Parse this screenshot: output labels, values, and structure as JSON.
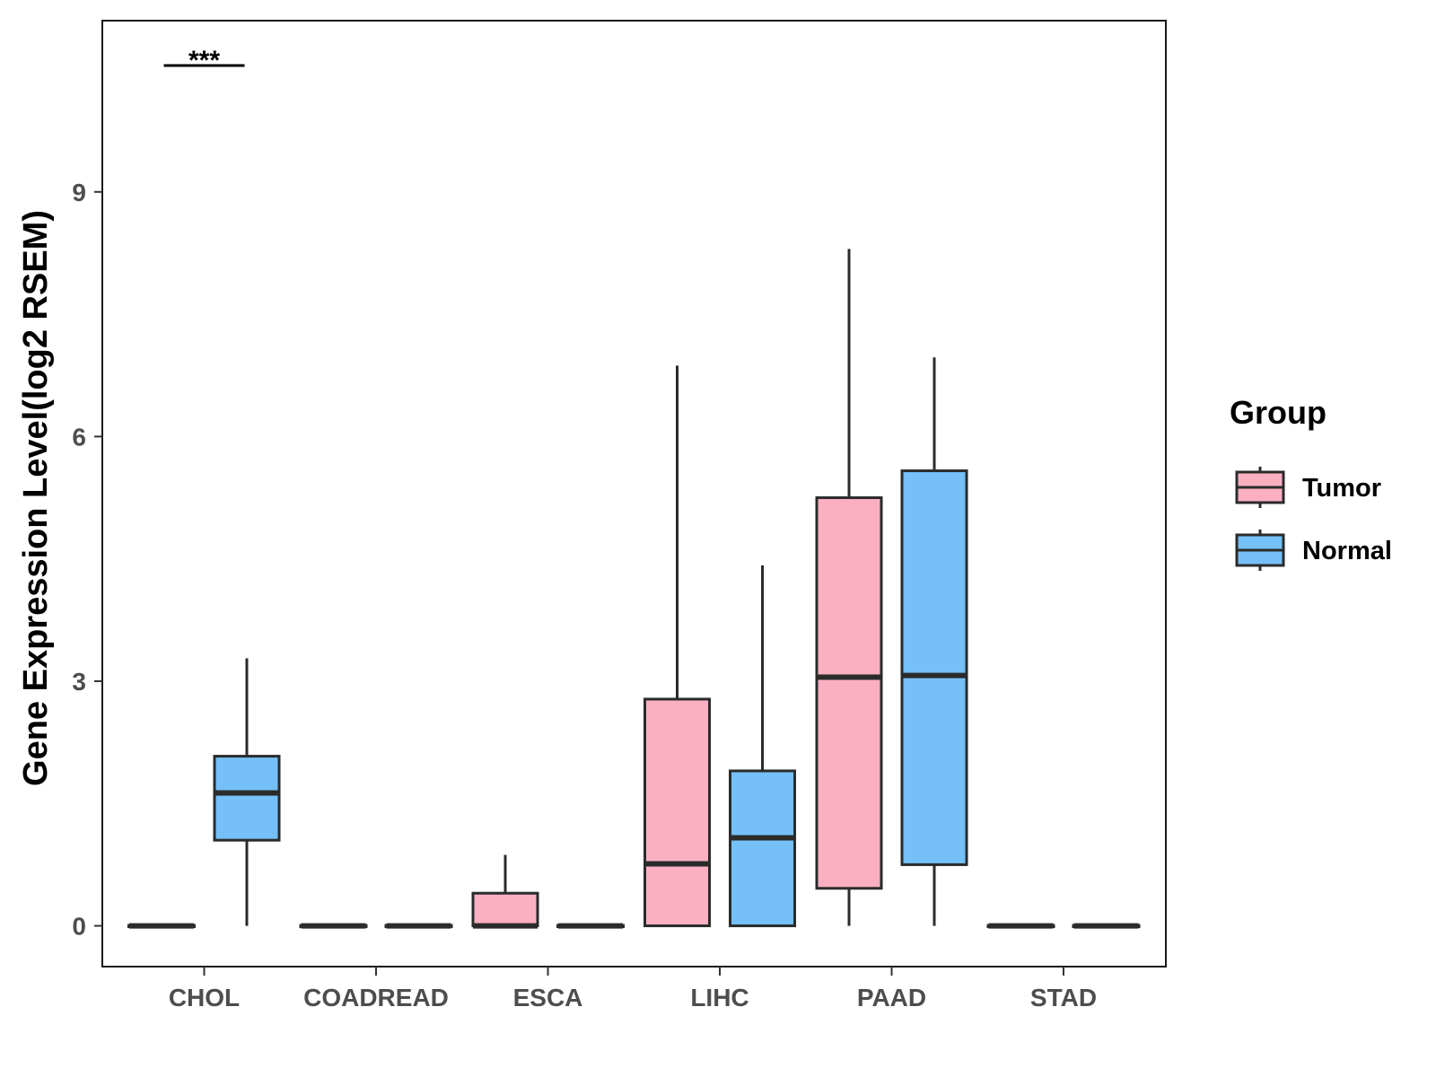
{
  "chart_data": {
    "type": "boxplot",
    "title": "",
    "xlabel": "",
    "ylabel": "Gene Expression Level(log2 RSEM)",
    "ylim": [
      -0.5,
      11.1
    ],
    "yticks": [
      0,
      3,
      6,
      9
    ],
    "ytick_labels": [
      "0",
      "3",
      "6",
      "9"
    ],
    "categories": [
      "CHOL",
      "COADREAD",
      "ESCA",
      "LIHC",
      "PAAD",
      "STAD"
    ],
    "legend": {
      "title": "Group",
      "position": "right",
      "entries": [
        {
          "name": "Tumor",
          "color": "#FBB0C2"
        },
        {
          "name": "Normal",
          "color": "#75C0F8"
        }
      ]
    },
    "series": [
      {
        "name": "Tumor",
        "color": "#FBB0C2",
        "boxes": [
          {
            "category": "CHOL",
            "min": 0,
            "q1": 0,
            "median": 0,
            "q3": 0,
            "max": 0
          },
          {
            "category": "COADREAD",
            "min": 0,
            "q1": 0,
            "median": 0,
            "q3": 0,
            "max": 0
          },
          {
            "category": "ESCA",
            "min": 0,
            "q1": 0,
            "median": 0,
            "q3": 0.4,
            "max": 0.87
          },
          {
            "category": "LIHC",
            "min": 0,
            "q1": 0,
            "median": 0.76,
            "q3": 2.78,
            "max": 6.87
          },
          {
            "category": "PAAD",
            "min": 0,
            "q1": 0.46,
            "median": 3.05,
            "q3": 5.25,
            "max": 8.3
          },
          {
            "category": "STAD",
            "min": 0,
            "q1": 0,
            "median": 0,
            "q3": 0,
            "max": 0
          }
        ]
      },
      {
        "name": "Normal",
        "color": "#75C0F8",
        "boxes": [
          {
            "category": "CHOL",
            "min": 0,
            "q1": 1.05,
            "median": 1.63,
            "q3": 2.08,
            "max": 3.28
          },
          {
            "category": "COADREAD",
            "min": 0,
            "q1": 0,
            "median": 0,
            "q3": 0,
            "max": 0
          },
          {
            "category": "ESCA",
            "min": 0,
            "q1": 0,
            "median": 0,
            "q3": 0,
            "max": 0
          },
          {
            "category": "LIHC",
            "min": 0,
            "q1": 0,
            "median": 1.08,
            "q3": 1.9,
            "max": 4.42
          },
          {
            "category": "PAAD",
            "min": 0,
            "q1": 0.75,
            "median": 3.07,
            "q3": 5.58,
            "max": 6.97
          },
          {
            "category": "STAD",
            "min": 0,
            "q1": 0,
            "median": 0,
            "q3": 0,
            "max": 0
          }
        ]
      }
    ],
    "annotations": [
      {
        "category": "CHOL",
        "text": "***",
        "y": 10.55
      }
    ]
  }
}
